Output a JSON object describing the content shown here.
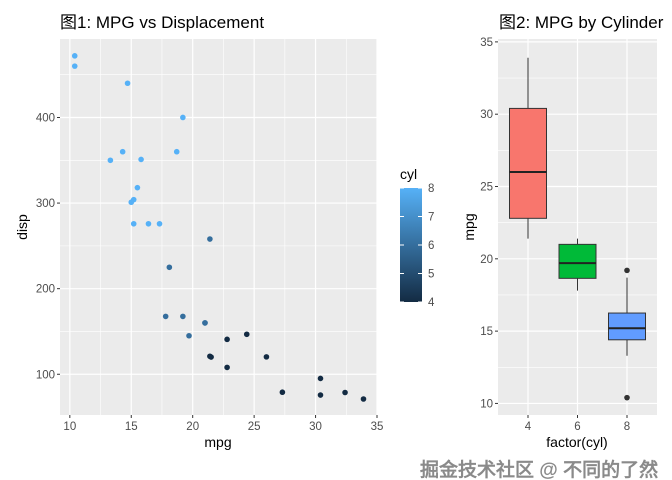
{
  "chart_data": [
    {
      "type": "scatter",
      "title": "图1: MPG vs Displacement",
      "xlabel": "mpg",
      "ylabel": "disp",
      "xlim": [
        9.2,
        35.0
      ],
      "ylim": [
        52.4,
        491.7
      ],
      "xticks": [
        10,
        15,
        20,
        25,
        30,
        35
      ],
      "yticks": [
        100,
        200,
        300,
        400
      ],
      "grid": true,
      "legend": {
        "title": "cyl",
        "placement": "right",
        "ticks": [
          4,
          5,
          6,
          7,
          8
        ],
        "low_color": "#132B43",
        "high_color": "#56B1F7"
      },
      "points": [
        {
          "mpg": 21,
          "disp": 160,
          "cyl": 6
        },
        {
          "mpg": 21,
          "disp": 160,
          "cyl": 6
        },
        {
          "mpg": 22.8,
          "disp": 108,
          "cyl": 4
        },
        {
          "mpg": 21.4,
          "disp": 258,
          "cyl": 6
        },
        {
          "mpg": 18.7,
          "disp": 360,
          "cyl": 8
        },
        {
          "mpg": 18.1,
          "disp": 225,
          "cyl": 6
        },
        {
          "mpg": 14.3,
          "disp": 360,
          "cyl": 8
        },
        {
          "mpg": 24.4,
          "disp": 146.7,
          "cyl": 4
        },
        {
          "mpg": 22.8,
          "disp": 140.8,
          "cyl": 4
        },
        {
          "mpg": 19.2,
          "disp": 167.6,
          "cyl": 6
        },
        {
          "mpg": 17.8,
          "disp": 167.6,
          "cyl": 6
        },
        {
          "mpg": 16.4,
          "disp": 275.8,
          "cyl": 8
        },
        {
          "mpg": 17.3,
          "disp": 275.8,
          "cyl": 8
        },
        {
          "mpg": 15.2,
          "disp": 275.8,
          "cyl": 8
        },
        {
          "mpg": 10.4,
          "disp": 472,
          "cyl": 8
        },
        {
          "mpg": 10.4,
          "disp": 460,
          "cyl": 8
        },
        {
          "mpg": 14.7,
          "disp": 440,
          "cyl": 8
        },
        {
          "mpg": 32.4,
          "disp": 78.7,
          "cyl": 4
        },
        {
          "mpg": 30.4,
          "disp": 75.7,
          "cyl": 4
        },
        {
          "mpg": 33.9,
          "disp": 71.1,
          "cyl": 4
        },
        {
          "mpg": 21.5,
          "disp": 120.1,
          "cyl": 4
        },
        {
          "mpg": 15.5,
          "disp": 318,
          "cyl": 8
        },
        {
          "mpg": 15.2,
          "disp": 304,
          "cyl": 8
        },
        {
          "mpg": 13.3,
          "disp": 350,
          "cyl": 8
        },
        {
          "mpg": 19.2,
          "disp": 400,
          "cyl": 8
        },
        {
          "mpg": 27.3,
          "disp": 79,
          "cyl": 4
        },
        {
          "mpg": 26,
          "disp": 120.3,
          "cyl": 4
        },
        {
          "mpg": 30.4,
          "disp": 95.1,
          "cyl": 4
        },
        {
          "mpg": 15.8,
          "disp": 351,
          "cyl": 8
        },
        {
          "mpg": 19.7,
          "disp": 145,
          "cyl": 6
        },
        {
          "mpg": 15,
          "disp": 301,
          "cyl": 8
        },
        {
          "mpg": 21.4,
          "disp": 121,
          "cyl": 4
        }
      ]
    },
    {
      "type": "box",
      "title": "图2: MPG by Cylinder",
      "xlabel": "factor(cyl)",
      "ylabel": "mpg",
      "ylim": [
        9.2,
        35.2
      ],
      "yticks": [
        10,
        15,
        20,
        25,
        30,
        35
      ],
      "categories": [
        "4",
        "6",
        "8"
      ],
      "grid": true,
      "boxes": [
        {
          "cyl": "4",
          "lower": 21.4,
          "q1": 22.8,
          "median": 26.0,
          "q3": 30.4,
          "upper": 33.9,
          "outliers": [],
          "fill": "#F8766D"
        },
        {
          "cyl": "6",
          "lower": 17.8,
          "q1": 18.65,
          "median": 19.7,
          "q3": 21.0,
          "upper": 21.4,
          "outliers": [],
          "fill": "#00BA38"
        },
        {
          "cyl": "8",
          "lower": 13.3,
          "q1": 14.4,
          "median": 15.2,
          "q3": 16.25,
          "upper": 18.7,
          "outliers": [
            10.4,
            19.2
          ],
          "fill": "#619CFF"
        }
      ]
    }
  ],
  "watermark": "掘金技术社区 @ 不同的了然"
}
